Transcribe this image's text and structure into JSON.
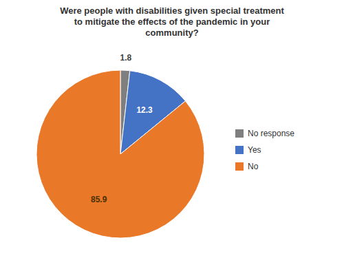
{
  "chart_data": {
    "type": "pie",
    "title": "Were people with disabilities given special treatment\nto mitigate the effects of the pandemic in your\ncommunity?",
    "categories": [
      "No response",
      "Yes",
      "No"
    ],
    "values": [
      1.8,
      12.3,
      85.9
    ],
    "colors": [
      "#7F7F7F",
      "#4472C4",
      "#E97828"
    ],
    "data_labels": true,
    "legend": "right"
  }
}
